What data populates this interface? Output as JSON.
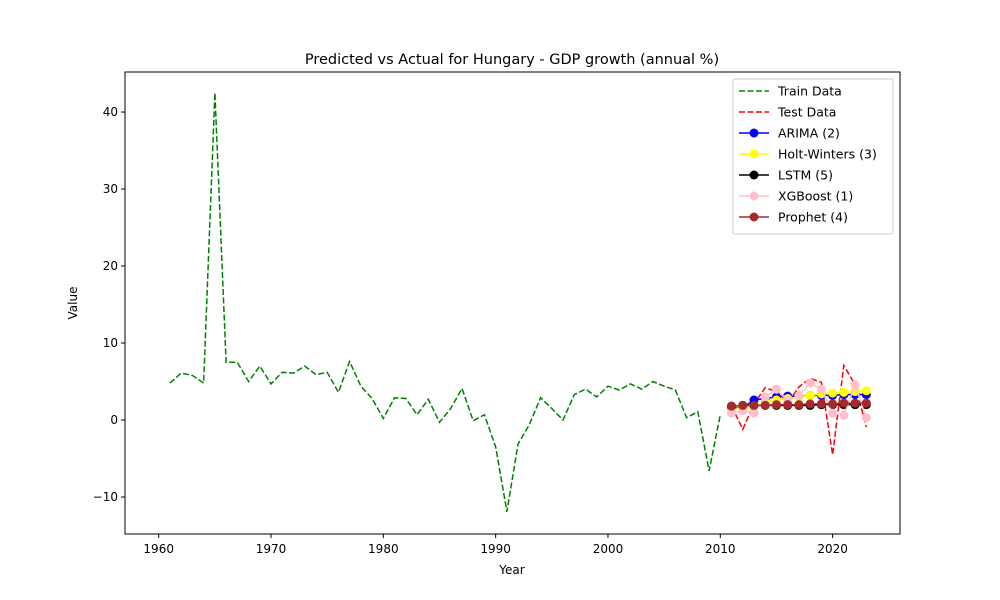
{
  "chart_data": {
    "type": "line",
    "title": "Predicted vs Actual for Hungary - GDP growth (annual %)",
    "xlabel": "Year",
    "ylabel": "Value",
    "xlim": [
      1957,
      2026
    ],
    "ylim": [
      -14.8,
      45.2
    ],
    "xticks": [
      1960,
      1970,
      1980,
      1990,
      2000,
      2010,
      2020
    ],
    "yticks": [
      -10,
      0,
      10,
      20,
      30,
      40
    ],
    "grid": false,
    "legend_position": "top-right",
    "series": [
      {
        "name": "Train Data",
        "color": "#008000",
        "style": "dashed",
        "markers": false,
        "x": [
          1961,
          1962,
          1963,
          1964,
          1965,
          1966,
          1967,
          1968,
          1969,
          1970,
          1971,
          1972,
          1973,
          1974,
          1975,
          1976,
          1977,
          1978,
          1979,
          1980,
          1981,
          1982,
          1983,
          1984,
          1985,
          1986,
          1987,
          1988,
          1989,
          1990,
          1991,
          1992,
          1993,
          1994,
          1995,
          1996,
          1997,
          1998,
          1999,
          2000,
          2001,
          2002,
          2003,
          2004,
          2005,
          2006,
          2007,
          2008,
          2009,
          2010
        ],
        "y": [
          4.8,
          6.1,
          5.8,
          4.8,
          42.5,
          7.5,
          7.5,
          5.0,
          7.0,
          4.7,
          6.2,
          6.1,
          7.0,
          5.9,
          6.2,
          3.6,
          7.6,
          4.4,
          2.8,
          0.2,
          2.9,
          2.8,
          0.7,
          2.7,
          -0.3,
          1.5,
          4.1,
          -0.1,
          0.7,
          -3.5,
          -11.9,
          -3.1,
          -0.6,
          2.9,
          1.5,
          0.0,
          3.3,
          4.0,
          3.0,
          4.4,
          3.9,
          4.7,
          4.0,
          5.0,
          4.4,
          3.9,
          0.3,
          1.1,
          -6.6,
          0.7
        ]
      },
      {
        "name": "Test Data",
        "color": "#ff0000",
        "style": "dashed",
        "markers": false,
        "x": [
          2011,
          2012,
          2013,
          2014,
          2015,
          2016,
          2017,
          2018,
          2019,
          2020,
          2021,
          2022,
          2023
        ],
        "y": [
          1.8,
          -1.2,
          2.1,
          4.2,
          3.7,
          2.2,
          4.3,
          5.4,
          4.9,
          -4.5,
          7.1,
          4.6,
          -0.9
        ]
      },
      {
        "name": "ARIMA (2)",
        "color": "#0000ff",
        "style": "solid",
        "markers": true,
        "x": [
          2011,
          2012,
          2013,
          2014,
          2015,
          2016,
          2017,
          2018,
          2019,
          2020,
          2021,
          2022,
          2023
        ],
        "y": [
          1.5,
          1.6,
          2.6,
          2.8,
          3.0,
          3.1,
          3.1,
          3.2,
          3.2,
          3.2,
          3.3,
          3.3,
          3.3
        ]
      },
      {
        "name": "Holt-Winters (3)",
        "color": "#ffff00",
        "style": "solid",
        "markers": true,
        "x": [
          2011,
          2012,
          2013,
          2014,
          2015,
          2016,
          2017,
          2018,
          2019,
          2020,
          2021,
          2022,
          2023
        ],
        "y": [
          1.3,
          1.6,
          1.8,
          2.3,
          2.6,
          2.8,
          3.0,
          3.2,
          3.4,
          3.5,
          3.6,
          3.7,
          3.8
        ]
      },
      {
        "name": "LSTM (5)",
        "color": "#000000",
        "style": "solid",
        "markers": true,
        "x": [
          2011,
          2012,
          2013,
          2014,
          2015,
          2016,
          2017,
          2018,
          2019,
          2020,
          2021,
          2022,
          2023
        ],
        "y": [
          1.8,
          1.9,
          1.9,
          1.9,
          1.9,
          1.9,
          1.9,
          1.9,
          2.0,
          2.0,
          2.0,
          2.0,
          2.0
        ]
      },
      {
        "name": "XGBoost (1)",
        "color": "#ffc0cb",
        "style": "solid",
        "markers": true,
        "x": [
          2011,
          2012,
          2013,
          2014,
          2015,
          2016,
          2017,
          2018,
          2019,
          2020,
          2021,
          2022,
          2023
        ],
        "y": [
          0.9,
          1.2,
          0.9,
          3.0,
          4.0,
          2.5,
          3.2,
          4.8,
          4.0,
          0.9,
          0.6,
          4.6,
          0.3
        ]
      },
      {
        "name": "Prophet (4)",
        "color": "#a52a2a",
        "style": "solid",
        "markers": true,
        "x": [
          2011,
          2012,
          2013,
          2014,
          2015,
          2016,
          2017,
          2018,
          2019,
          2020,
          2021,
          2022,
          2023
        ],
        "y": [
          1.8,
          1.9,
          1.9,
          1.9,
          2.0,
          2.0,
          2.0,
          2.1,
          2.1,
          2.1,
          2.2,
          2.2,
          2.2
        ]
      }
    ]
  }
}
